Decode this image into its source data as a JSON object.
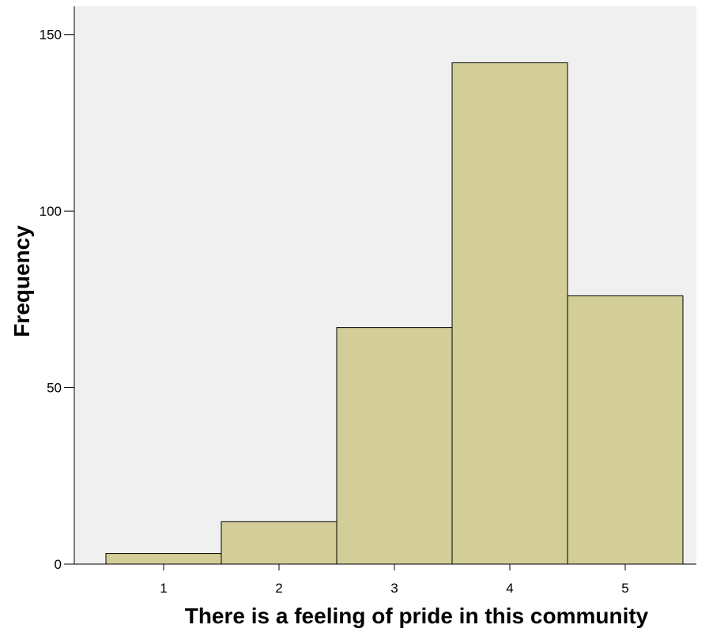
{
  "chart_data": {
    "type": "bar",
    "title": "",
    "xlabel": "There is a feeling of pride in this community",
    "ylabel": "Frequency",
    "categories": [
      "1",
      "2",
      "3",
      "4",
      "5"
    ],
    "values": [
      3,
      12,
      67,
      142,
      76
    ],
    "ylim": [
      0,
      158
    ],
    "yticks": [
      0,
      50,
      100,
      150
    ],
    "grid": false,
    "legend": "none",
    "colors": {
      "plot_background": "#f0f0f0",
      "bar_fill": "#d3ce97",
      "bar_stroke": "#000000",
      "axis": "#000000"
    }
  }
}
